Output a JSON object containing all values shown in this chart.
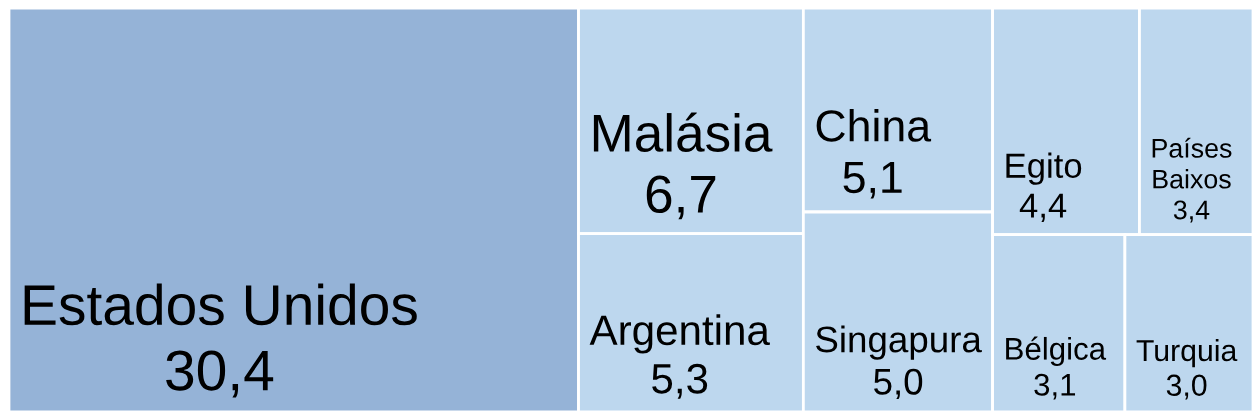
{
  "chart_data": {
    "type": "other",
    "categories": [
      "Estados Unidos",
      "Malásia",
      "Argentina",
      "China",
      "Singapura",
      "Egito",
      "Países Baixos",
      "Bélgica",
      "Turquia"
    ],
    "values": [
      30.4,
      6.7,
      5.3,
      5.1,
      5.0,
      4.4,
      3.4,
      3.1,
      3.0
    ],
    "value_labels": [
      "30,4",
      "6,7",
      "5,3",
      "5,1",
      "5,0",
      "4,4",
      "3,4",
      "3,1",
      "3,0"
    ],
    "colors": [
      "#95b3d7",
      "#bdd7ee",
      "#bdd7ee",
      "#bdd7ee",
      "#bdd7ee",
      "#bdd7ee",
      "#bdd7ee",
      "#bdd7ee",
      "#bdd7ee"
    ]
  }
}
